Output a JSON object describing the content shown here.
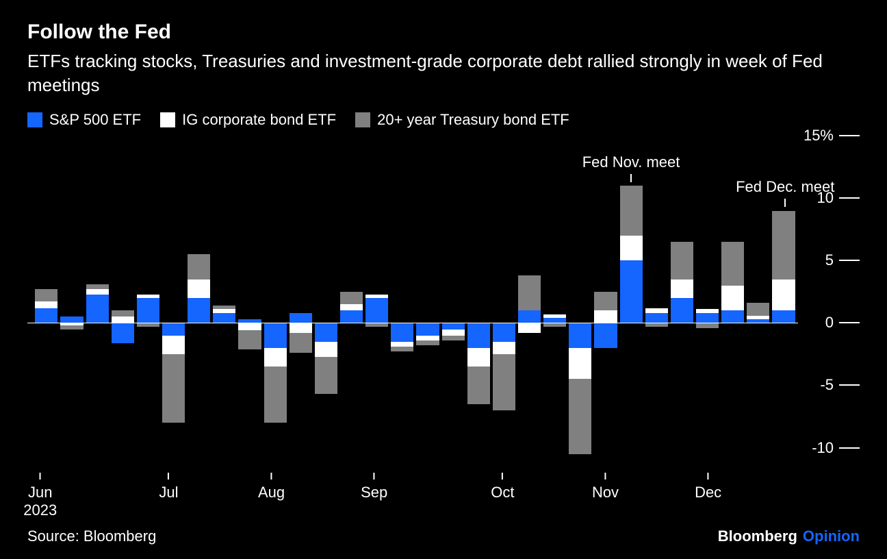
{
  "title": "Follow the Fed",
  "title_fontsize": 30,
  "subtitle": "ETFs tracking stocks, Treasuries and investment-grade corporate debt rallied strongly in week of Fed meetings",
  "subtitle_fontsize": 26,
  "legend_fontsize": 22,
  "legend": [
    {
      "label": "S&P 500 ETF",
      "color": "#1565ff"
    },
    {
      "label": "IG corporate bond ETF",
      "color": "#ffffff"
    },
    {
      "label": "20+ year Treasury bond ETF",
      "color": "#808080"
    }
  ],
  "chart": {
    "type": "stacked-bar",
    "background_color": "#000000",
    "ylim": [
      -12,
      15
    ],
    "yticks": [
      {
        "v": 15,
        "label": "15%"
      },
      {
        "v": 10,
        "label": "10"
      },
      {
        "v": 5,
        "label": "5"
      },
      {
        "v": 0,
        "label": "0"
      },
      {
        "v": -5,
        "label": "-5"
      },
      {
        "v": -10,
        "label": "-10"
      }
    ],
    "ytick_fontsize": 22,
    "xticks": [
      {
        "index": 0,
        "label": "Jun",
        "year": "2023"
      },
      {
        "index": 5,
        "label": "Jul"
      },
      {
        "index": 9,
        "label": "Aug"
      },
      {
        "index": 13,
        "label": "Sep"
      },
      {
        "index": 18,
        "label": "Oct"
      },
      {
        "index": 22,
        "label": "Nov"
      },
      {
        "index": 26,
        "label": "Dec"
      }
    ],
    "xtick_fontsize": 22,
    "series_colors": {
      "sp500": "#1565ff",
      "ig": "#ffffff",
      "treasury": "#808080"
    },
    "weeks": [
      {
        "sp500": 1.2,
        "ig": 0.5,
        "treasury": 1.0
      },
      {
        "sp500": 0.5,
        "ig": -0.2,
        "treasury": -0.3
      },
      {
        "sp500": 2.3,
        "ig": 0.4,
        "treasury": 0.4
      },
      {
        "sp500": -1.6,
        "ig": 0.5,
        "treasury": 0.5
      },
      {
        "sp500": 2.0,
        "ig": 0.3,
        "treasury": -0.3
      },
      {
        "sp500": -1.0,
        "ig": -1.5,
        "treasury": -5.5
      },
      {
        "sp500": 2.0,
        "ig": 1.5,
        "treasury": 2.0
      },
      {
        "sp500": 0.8,
        "ig": 0.3,
        "treasury": 0.3
      },
      {
        "sp500": 0.3,
        "ig": -0.6,
        "treasury": -1.5
      },
      {
        "sp500": -2.0,
        "ig": -1.5,
        "treasury": -4.5
      },
      {
        "sp500": 0.8,
        "ig": -0.8,
        "treasury": -1.6
      },
      {
        "sp500": -1.5,
        "ig": -1.2,
        "treasury": -3.0
      },
      {
        "sp500": 1.0,
        "ig": 0.5,
        "treasury": 1.0
      },
      {
        "sp500": 2.0,
        "ig": 0.3,
        "treasury": -0.3
      },
      {
        "sp500": -1.5,
        "ig": -0.4,
        "treasury": -0.4
      },
      {
        "sp500": -1.0,
        "ig": -0.4,
        "treasury": -0.4
      },
      {
        "sp500": -0.5,
        "ig": -0.5,
        "treasury": -0.4
      },
      {
        "sp500": -2.0,
        "ig": -1.5,
        "treasury": -3.0
      },
      {
        "sp500": -1.5,
        "ig": -1.0,
        "treasury": -4.5
      },
      {
        "sp500": 1.0,
        "ig": -0.8,
        "treasury": 2.8
      },
      {
        "sp500": 0.4,
        "ig": 0.3,
        "treasury": -0.3
      },
      {
        "sp500": -2.0,
        "ig": -2.5,
        "treasury": -6.0
      },
      {
        "sp500": -2.0,
        "ig": 1.0,
        "treasury": 1.5
      },
      {
        "sp500": 5.0,
        "ig": 2.0,
        "treasury": 4.0
      },
      {
        "sp500": 0.8,
        "ig": 0.4,
        "treasury": -0.3
      },
      {
        "sp500": 2.0,
        "ig": 1.5,
        "treasury": 3.0
      },
      {
        "sp500": 0.8,
        "ig": 0.3,
        "treasury": -0.4
      },
      {
        "sp500": 1.0,
        "ig": 2.0,
        "treasury": 3.5
      },
      {
        "sp500": 0.3,
        "ig": 0.3,
        "treasury": 1.0
      },
      {
        "sp500": 1.0,
        "ig": 2.5,
        "treasury": 5.5
      }
    ],
    "annotations": [
      {
        "index": 23,
        "label": "Fed Nov. meet",
        "top_value": 11.3
      },
      {
        "index": 29,
        "label": "Fed Dec. meet",
        "top_value": 9.3
      }
    ],
    "annotation_fontsize": 22
  },
  "source": "Source: Bloomberg",
  "brand_main": "Bloomberg",
  "brand_sub": "Opinion",
  "brand_sub_color": "#1565ff",
  "footer_fontsize": 22
}
